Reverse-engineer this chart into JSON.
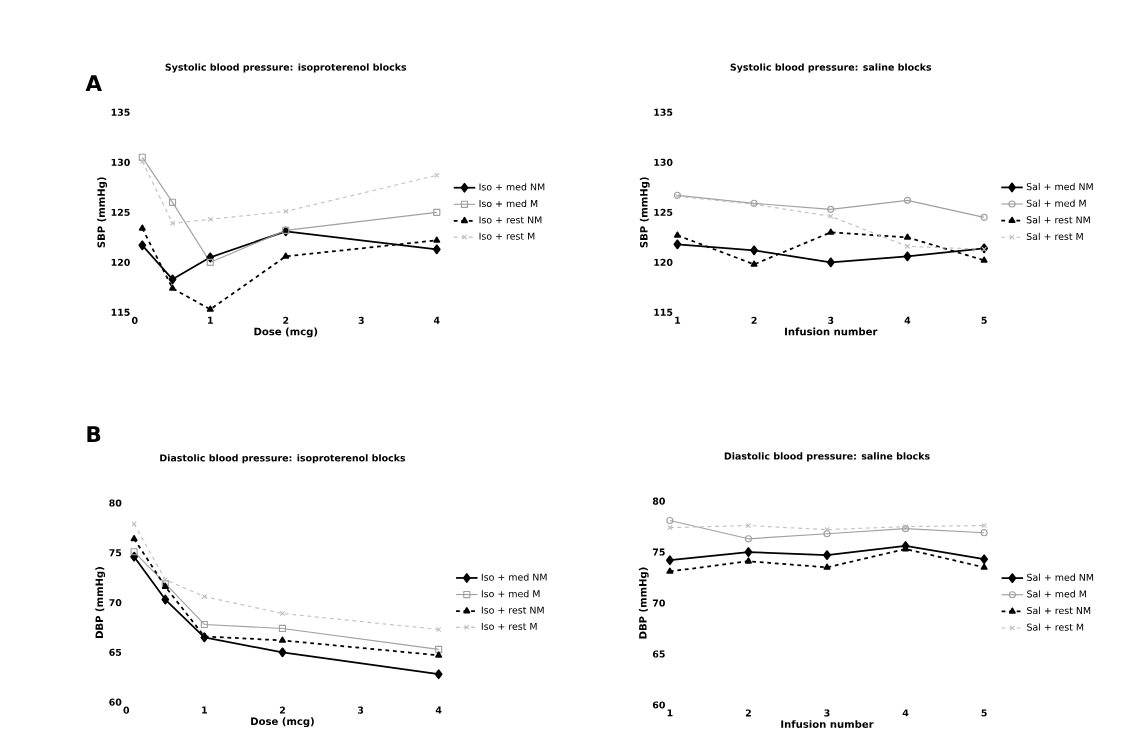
{
  "chart_data": [
    {
      "type": "line",
      "title": "Systolic blood pressure: isoproterenol blocks",
      "xlabel": "Dose (mcg)",
      "ylabel": "SBP (mmHg)",
      "annotations": [
        "A"
      ],
      "x": [
        0.1,
        0.5,
        1,
        2,
        4
      ],
      "xlim": [
        0,
        4
      ],
      "xticks": [
        0,
        1,
        2,
        3,
        4
      ],
      "ylim": [
        115,
        135
      ],
      "yticks": [
        115,
        120,
        125,
        130,
        135
      ],
      "legend": "right",
      "grid": false,
      "series": [
        {
          "name": "Iso + med NM",
          "color": "#000000",
          "marker": "diamond",
          "line_style": "solid",
          "values": [
            121.7,
            118.3,
            120.5,
            123.1,
            121.3
          ]
        },
        {
          "name": "Iso + med M",
          "color": "#a0a0a0",
          "marker": "square",
          "line_style": "solid",
          "values": [
            130.5,
            126.0,
            120.0,
            123.2,
            125.0
          ]
        },
        {
          "name": "Iso + rest NM",
          "color": "#000000",
          "marker": "triangle",
          "line_style": "dashed",
          "values": [
            123.4,
            117.4,
            115.3,
            120.6,
            122.2
          ]
        },
        {
          "name": "Iso + rest M",
          "color": "#c0c0c0",
          "marker": "cross",
          "line_style": "dashed",
          "values": [
            130.1,
            123.9,
            124.3,
            125.1,
            128.7
          ]
        }
      ]
    },
    {
      "type": "line",
      "title": "Systolic blood pressure: saline blocks",
      "xlabel": "Infusion number",
      "ylabel": "SBP (mmHg)",
      "categories": [
        "1",
        "2",
        "3",
        "4",
        "5"
      ],
      "ylim": [
        115,
        135
      ],
      "yticks": [
        115,
        120,
        125,
        130,
        135
      ],
      "legend": "right",
      "grid": false,
      "series": [
        {
          "name": "Sal + med NM",
          "color": "#000000",
          "marker": "diamond",
          "line_style": "solid",
          "values": [
            121.8,
            121.2,
            120.0,
            120.6,
            121.4
          ]
        },
        {
          "name": "Sal + med M",
          "color": "#a0a0a0",
          "marker": "circle",
          "line_style": "solid",
          "values": [
            126.7,
            125.9,
            125.3,
            126.2,
            124.5
          ]
        },
        {
          "name": "Sal + rest NM",
          "color": "#000000",
          "marker": "triangle",
          "line_style": "dashed",
          "values": [
            122.7,
            119.8,
            123.0,
            122.5,
            120.2
          ]
        },
        {
          "name": "Sal + rest M",
          "color": "#c0c0c0",
          "marker": "cross",
          "line_style": "dashed",
          "values": [
            126.6,
            125.8,
            124.6,
            121.6,
            121.3
          ]
        }
      ]
    },
    {
      "type": "line",
      "title": "Diastolic blood pressure: isoproterenol blocks",
      "xlabel": "Dose (mcg)",
      "ylabel": "DBP (mmHg)",
      "annotations": [
        "B"
      ],
      "x": [
        0.1,
        0.5,
        1,
        2,
        4
      ],
      "xlim": [
        0,
        4
      ],
      "xticks": [
        0,
        1,
        2,
        3,
        4
      ],
      "ylim": [
        60,
        80
      ],
      "yticks": [
        60,
        65,
        70,
        75,
        80
      ],
      "legend": "right",
      "grid": false,
      "series": [
        {
          "name": "Iso + med NM",
          "color": "#000000",
          "marker": "diamond",
          "line_style": "solid",
          "values": [
            74.6,
            70.3,
            66.5,
            65.0,
            62.8
          ]
        },
        {
          "name": "Iso + med M",
          "color": "#a0a0a0",
          "marker": "square",
          "line_style": "solid",
          "values": [
            75.1,
            71.9,
            67.8,
            67.4,
            65.3
          ]
        },
        {
          "name": "Iso + rest NM",
          "color": "#000000",
          "marker": "triangle",
          "line_style": "dashed",
          "values": [
            76.4,
            71.6,
            66.6,
            66.2,
            64.7
          ]
        },
        {
          "name": "Iso + rest M",
          "color": "#c0c0c0",
          "marker": "cross",
          "line_style": "dashed",
          "values": [
            77.9,
            72.3,
            70.6,
            68.9,
            67.3
          ]
        }
      ]
    },
    {
      "type": "line",
      "title": "Diastolic blood pressure: saline blocks",
      "xlabel": "Infusion number",
      "ylabel": "DBP (mmHg)",
      "categories": [
        "1",
        "2",
        "3",
        "4",
        "5"
      ],
      "ylim": [
        60,
        80
      ],
      "yticks": [
        60,
        65,
        70,
        75,
        80
      ],
      "legend": "right",
      "grid": false,
      "series": [
        {
          "name": "Sal + med NM",
          "color": "#000000",
          "marker": "diamond",
          "line_style": "solid",
          "values": [
            74.2,
            75.0,
            74.7,
            75.6,
            74.3
          ]
        },
        {
          "name": "Sal + med M",
          "color": "#a0a0a0",
          "marker": "circle",
          "line_style": "solid",
          "values": [
            78.1,
            76.3,
            76.8,
            77.3,
            76.9
          ]
        },
        {
          "name": "Sal + rest NM",
          "color": "#000000",
          "marker": "triangle",
          "line_style": "dashed",
          "values": [
            73.1,
            74.1,
            73.5,
            75.3,
            73.5
          ]
        },
        {
          "name": "Sal + rest M",
          "color": "#c0c0c0",
          "marker": "cross",
          "line_style": "dashed",
          "values": [
            77.4,
            77.6,
            77.2,
            77.5,
            77.6
          ]
        }
      ]
    }
  ]
}
